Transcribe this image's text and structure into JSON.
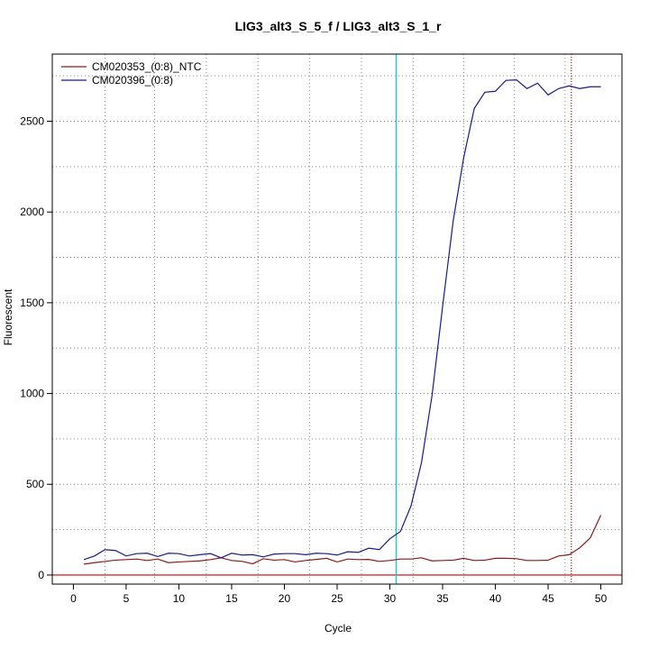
{
  "chart_data": {
    "type": "line",
    "title": "LIG3_alt3_S_5_f / LIG3_alt3_S_1_r",
    "xlabel": "Cycle",
    "ylabel": "Fluorescent",
    "xlim": [
      -2,
      52
    ],
    "ylim": [
      -50,
      2870
    ],
    "xticks": [
      0,
      5,
      10,
      15,
      20,
      25,
      30,
      35,
      40,
      45,
      50
    ],
    "yticks": [
      0,
      500,
      1000,
      1500,
      2000,
      2500
    ],
    "xgrid": [
      3,
      7.7,
      12.6,
      17.5,
      22.4,
      27.3,
      32.2,
      37,
      41.8,
      46.6
    ],
    "ygrid": [
      250,
      500,
      750,
      1000,
      1250,
      1500,
      1750,
      2000,
      2250,
      2500,
      2750
    ],
    "grid": true,
    "legend_position": "top-left",
    "series": [
      {
        "name": "CM020353_(0:8)_NTC",
        "color": "#8b1a1a",
        "x": [
          1,
          2,
          3,
          4,
          5,
          6,
          7,
          8,
          9,
          10,
          11,
          12,
          13,
          14,
          15,
          16,
          17,
          18,
          19,
          20,
          21,
          22,
          23,
          24,
          25,
          26,
          27,
          28,
          29,
          30,
          31,
          32,
          33,
          34,
          35,
          36,
          37,
          38,
          39,
          40,
          41,
          42,
          43,
          44,
          45,
          46,
          47,
          48,
          49,
          50
        ],
        "values": [
          60,
          68,
          75,
          82,
          85,
          88,
          80,
          88,
          68,
          72,
          75,
          78,
          85,
          95,
          80,
          75,
          62,
          90,
          82,
          85,
          72,
          80,
          86,
          92,
          72,
          88,
          85,
          86,
          75,
          80,
          88,
          88,
          95,
          78,
          80,
          82,
          92,
          80,
          82,
          92,
          92,
          90,
          80,
          80,
          82,
          105,
          112,
          150,
          205,
          330
        ]
      },
      {
        "name": "CM020396_(0:8)",
        "color": "#1a1a8b",
        "x": [
          1,
          2,
          3,
          4,
          5,
          6,
          7,
          8,
          9,
          10,
          11,
          12,
          13,
          14,
          15,
          16,
          17,
          18,
          19,
          20,
          21,
          22,
          23,
          24,
          25,
          26,
          27,
          28,
          29,
          30,
          31,
          32,
          33,
          34,
          35,
          36,
          37,
          38,
          39,
          40,
          41,
          42,
          43,
          44,
          45,
          46,
          47,
          48,
          49,
          50
        ],
        "values": [
          85,
          105,
          140,
          135,
          105,
          118,
          120,
          102,
          120,
          118,
          105,
          112,
          118,
          95,
          120,
          110,
          112,
          100,
          115,
          118,
          118,
          112,
          120,
          118,
          110,
          128,
          125,
          148,
          140,
          200,
          240,
          380,
          620,
          990,
          1480,
          1950,
          2300,
          2570,
          2660,
          2665,
          2725,
          2728,
          2680,
          2710,
          2645,
          2680,
          2695,
          2680,
          2690,
          2690
        ]
      }
    ],
    "vlines": [
      {
        "x": 30.6,
        "color": "#00ced1",
        "style": "solid"
      },
      {
        "x": 47.2,
        "color": "#cc0000",
        "style": "dotted"
      }
    ],
    "hlines": [
      {
        "y": 0,
        "color": "#cc0000",
        "style": "solid"
      }
    ]
  }
}
